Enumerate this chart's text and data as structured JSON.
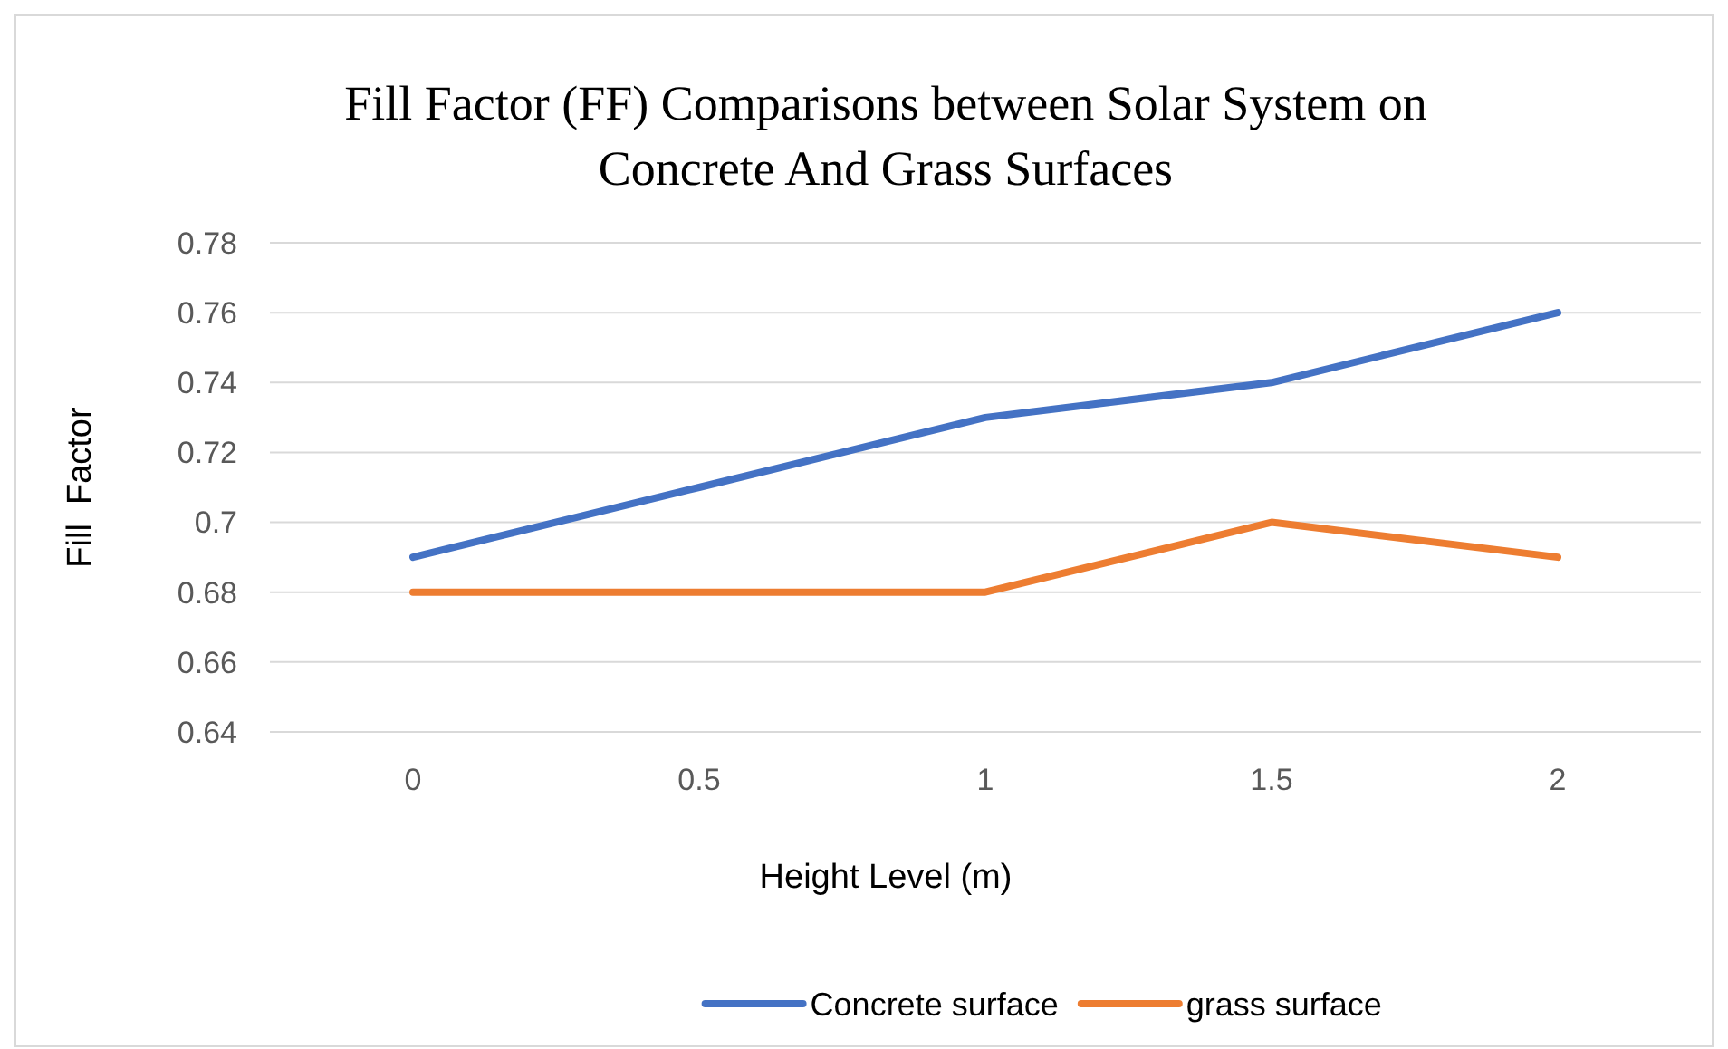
{
  "chart_data": {
    "type": "line",
    "title": "Fill Factor (FF) Comparisons between Solar System on Concrete And Grass Surfaces",
    "xlabel": "Height Level (m)",
    "ylabel": "Fill  Factor",
    "categories": [
      "0",
      "0.5",
      "1",
      "1.5",
      "2"
    ],
    "series": [
      {
        "name": "Concrete surface",
        "color": "#4472c4",
        "values": [
          0.69,
          0.71,
          0.73,
          0.74,
          0.76
        ]
      },
      {
        "name": "grass surface",
        "color": "#ed7d31",
        "values": [
          0.68,
          0.68,
          0.68,
          0.7,
          0.69
        ]
      }
    ],
    "ylim": [
      0.64,
      0.78
    ],
    "yticks": [
      0.64,
      0.66,
      0.68,
      {
        "value": 0.7,
        "label": "0.7"
      },
      0.72,
      0.74,
      0.76,
      0.78
    ],
    "grid": "y",
    "legend": "bottom",
    "marker": "none",
    "line_style": "solid"
  }
}
